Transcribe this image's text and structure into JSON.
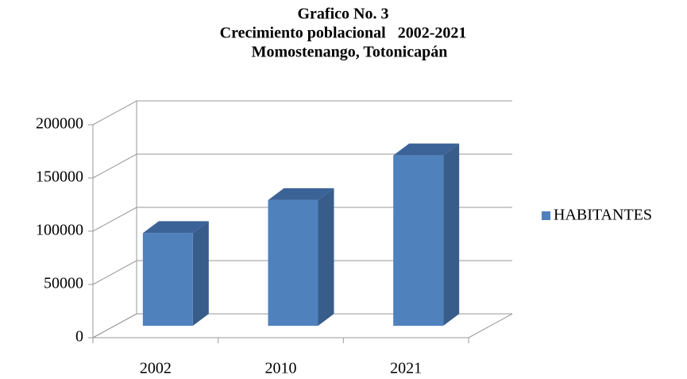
{
  "chart_data": {
    "type": "bar3d",
    "title": [
      "Grafico No. 3",
      "Crecimiento poblacional   2002-2021",
      "Momostenango, Totonicapán"
    ],
    "categories": [
      "2002",
      "2010",
      "2021"
    ],
    "series": [
      {
        "name": "HABITANTES",
        "color": "#4f81bd",
        "values": [
          87000,
          118000,
          160000
        ]
      }
    ],
    "ylim": [
      0,
      200000
    ],
    "yticks": [
      0,
      50000,
      100000,
      150000,
      200000
    ],
    "grid": true,
    "legend": "right"
  }
}
